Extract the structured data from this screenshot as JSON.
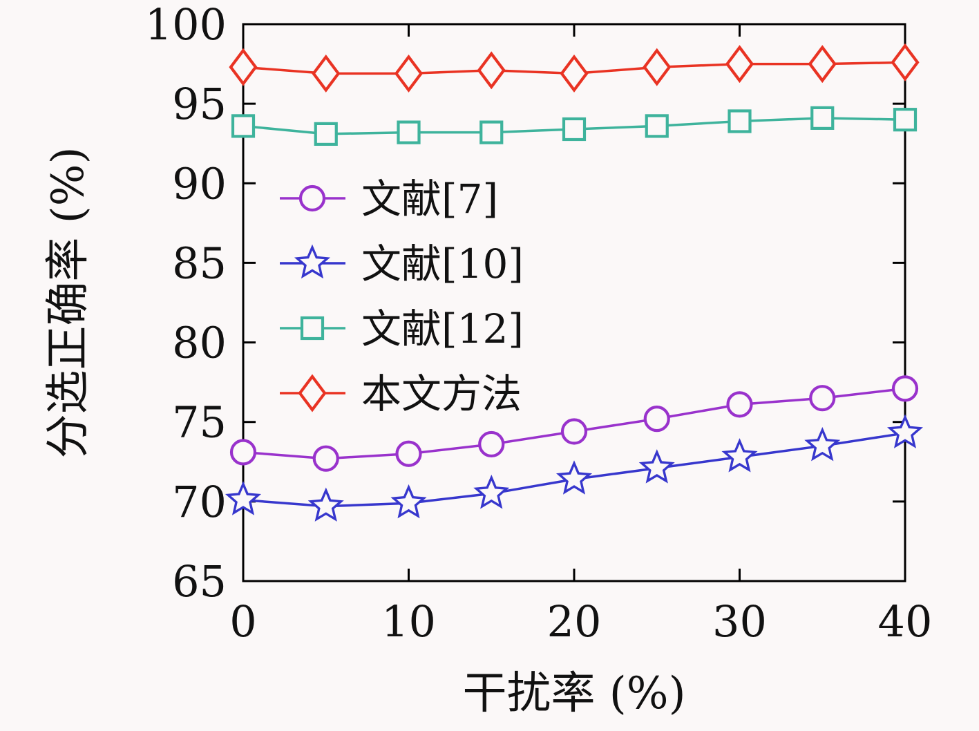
{
  "chart_data": {
    "type": "line",
    "title": "",
    "xlabel": "干扰率 (%)",
    "ylabel": "分选正确率 (%)",
    "xlim": [
      0,
      40
    ],
    "ylim": [
      65,
      100
    ],
    "xticks": [
      0,
      10,
      20,
      30,
      40
    ],
    "yticks": [
      65,
      70,
      75,
      80,
      85,
      90,
      95,
      100
    ],
    "grid": "off",
    "legend_position": "inside-middle-left",
    "x": [
      0,
      5,
      10,
      15,
      20,
      25,
      30,
      35,
      40
    ],
    "series": [
      {
        "name": "文献[7]",
        "marker": "circle",
        "color": "#9932CC",
        "values": [
          73.1,
          72.7,
          73.0,
          73.6,
          74.4,
          75.2,
          76.1,
          76.5,
          77.1
        ]
      },
      {
        "name": "文献[10]",
        "marker": "star",
        "color": "#3737CD",
        "values": [
          70.1,
          69.7,
          69.9,
          70.5,
          71.4,
          72.1,
          72.8,
          73.5,
          74.3
        ]
      },
      {
        "name": "文献[12]",
        "marker": "square",
        "color": "#3EB39C",
        "values": [
          93.6,
          93.1,
          93.2,
          93.2,
          93.4,
          93.6,
          93.9,
          94.1,
          94.0
        ]
      },
      {
        "name": "本文方法",
        "marker": "diamond",
        "color": "#E93323",
        "values": [
          97.3,
          96.9,
          96.9,
          97.1,
          96.9,
          97.3,
          97.5,
          97.5,
          97.6
        ]
      }
    ]
  },
  "style": {
    "background": "#fbf8f8",
    "axis_color": "#000000"
  }
}
